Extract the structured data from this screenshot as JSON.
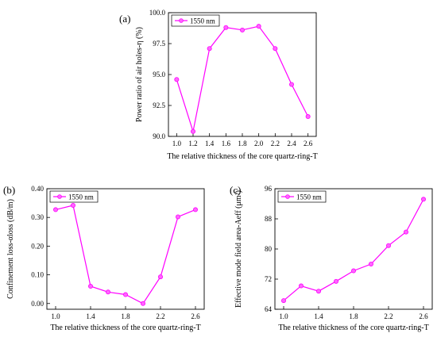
{
  "chart_data": [
    {
      "type": "line",
      "panel_label": "(a)",
      "x": [
        1.0,
        1.2,
        1.4,
        1.6,
        1.8,
        2.0,
        2.2,
        2.4,
        2.6
      ],
      "series": [
        {
          "name": "1550 nm",
          "color": "#ff00ff",
          "values": [
            94.6,
            90.4,
            97.1,
            98.8,
            98.6,
            98.9,
            97.1,
            94.2,
            91.6
          ]
        }
      ],
      "xlabel": "The relative thickness of the core quartz-ring-T",
      "ylabel": "Power ratio of air holes-η (%)",
      "xlim": [
        0.9,
        2.7
      ],
      "ylim": [
        90.0,
        100.0
      ],
      "xticks": [
        1.0,
        1.2,
        1.4,
        1.6,
        1.8,
        2.0,
        2.2,
        2.4,
        2.6
      ],
      "yticks": [
        90.0,
        92.5,
        95.0,
        97.5,
        100.0
      ],
      "xtick_labels": [
        "1.0",
        "1.2",
        "1.4",
        "1.6",
        "1.8",
        "2.0",
        "2.2",
        "2.4",
        "2.6"
      ],
      "ytick_labels": [
        "90.0",
        "92.5",
        "95.0",
        "97.5",
        "100.0"
      ],
      "legend_position": "top-left",
      "grid": false
    },
    {
      "type": "line",
      "panel_label": "(b)",
      "x": [
        1.0,
        1.2,
        1.4,
        1.6,
        1.8,
        2.0,
        2.2,
        2.4,
        2.6
      ],
      "series": [
        {
          "name": "1550 nm",
          "color": "#ff00ff",
          "values": [
            0.327,
            0.342,
            0.06,
            0.04,
            0.031,
            0.0,
            0.093,
            0.302,
            0.327
          ]
        }
      ],
      "xlabel": "The relative thickness of the core quartz-ring-T",
      "ylabel": "Confinement loss-αloss (dB/m)",
      "xlim": [
        0.9,
        2.7
      ],
      "ylim": [
        -0.02,
        0.4
      ],
      "xticks": [
        1.0,
        1.4,
        1.8,
        2.2,
        2.6
      ],
      "yticks": [
        0.0,
        0.1,
        0.2,
        0.3,
        0.4
      ],
      "xtick_labels": [
        "1.0",
        "1.4",
        "1.8",
        "2.2",
        "2.6"
      ],
      "ytick_labels": [
        "0.00",
        "0.10",
        "0.20",
        "0.30",
        "0.40"
      ],
      "legend_position": "top-left",
      "grid": false
    },
    {
      "type": "line",
      "panel_label": "(c)",
      "x": [
        1.0,
        1.2,
        1.4,
        1.6,
        1.8,
        2.0,
        2.2,
        2.4,
        2.6
      ],
      "series": [
        {
          "name": "1550 nm",
          "color": "#ff00ff",
          "values": [
            66.3,
            70.2,
            68.8,
            71.4,
            74.2,
            76.0,
            80.9,
            84.5,
            93.2
          ]
        }
      ],
      "xlabel": "The relative thickness of the core quartz-ring-T",
      "ylabel": "Effective mode field area-Aeff (μm²)",
      "xlim": [
        0.9,
        2.7
      ],
      "ylim": [
        64.0,
        96.0
      ],
      "xticks": [
        1.0,
        1.4,
        1.8,
        2.2,
        2.6
      ],
      "yticks": [
        64,
        72,
        80,
        88,
        96
      ],
      "xtick_labels": [
        "1.0",
        "1.4",
        "1.8",
        "2.2",
        "2.6"
      ],
      "ytick_labels": [
        "64",
        "72",
        "80",
        "88",
        "96"
      ],
      "legend_position": "top-left",
      "grid": false
    }
  ]
}
